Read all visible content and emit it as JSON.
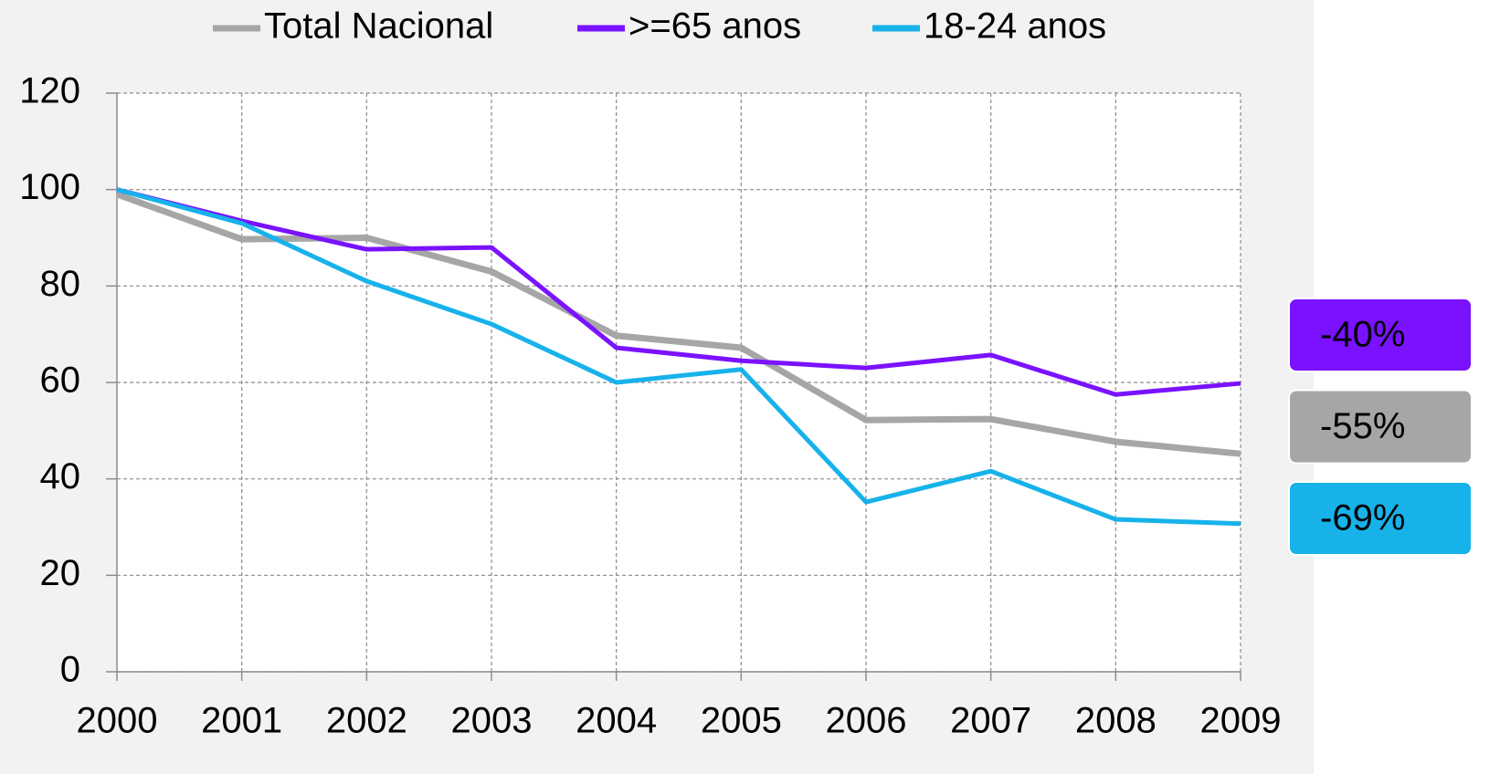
{
  "chart_data": {
    "type": "line",
    "categories": [
      "2000",
      "2001",
      "2002",
      "2003",
      "2004",
      "2005",
      "2006",
      "2007",
      "2008",
      "2009"
    ],
    "series": [
      {
        "name": "Total Nacional",
        "color": "#a6a6a6",
        "values": [
          99,
          89.7,
          90,
          83,
          69.7,
          67.2,
          52.2,
          52.4,
          47.7,
          45.2
        ]
      },
      {
        "name": ">=65 anos",
        "color": "#7a12ff",
        "values": [
          100,
          93.5,
          87.6,
          88,
          67.2,
          64.5,
          63,
          65.7,
          57.5,
          59.8
        ]
      },
      {
        "name": "18-24 anos",
        "color": "#17b2ea",
        "values": [
          100,
          93,
          81,
          72.1,
          60,
          62.7,
          35.2,
          41.6,
          31.6,
          30.7
        ]
      }
    ],
    "ylim": [
      0,
      120
    ],
    "yticks": [
      0,
      20,
      40,
      60,
      80,
      100,
      120
    ],
    "grid": true,
    "annotations": [
      {
        "text": "-40%",
        "color": "#7a12ff"
      },
      {
        "text": "-55%",
        "color": "#a6a6a6"
      },
      {
        "text": "-69%",
        "color": "#17b2ea"
      }
    ]
  }
}
